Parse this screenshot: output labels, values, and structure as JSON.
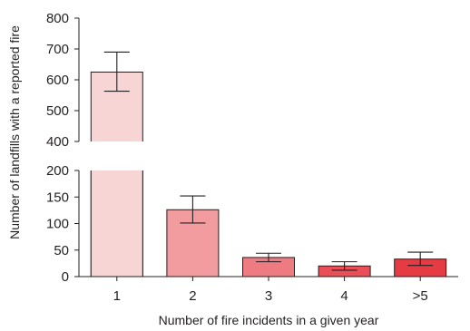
{
  "chart_data": {
    "type": "bar",
    "xlabel": "Number of fire incidents in a given year",
    "ylabel": "Number of landfills with a reported fire",
    "categories": [
      "1",
      "2",
      "3",
      "4",
      ">5"
    ],
    "values": [
      625,
      126,
      36,
      20,
      33
    ],
    "error_low": [
      563,
      101,
      28,
      12,
      21
    ],
    "error_high": [
      690,
      152,
      44,
      28,
      46
    ],
    "bar_colors": [
      "#f8d5d5",
      "#f39ca0",
      "#ef7b82",
      "#ea4e56",
      "#e73b43"
    ],
    "axis_break": {
      "lower_range": [
        0,
        200
      ],
      "upper_range": [
        400,
        800
      ]
    },
    "lower_ticks": [
      "0",
      "50",
      "100",
      "150",
      "200"
    ],
    "upper_ticks": [
      "400",
      "500",
      "600",
      "700",
      "800"
    ],
    "grid": false,
    "legend": "none"
  }
}
